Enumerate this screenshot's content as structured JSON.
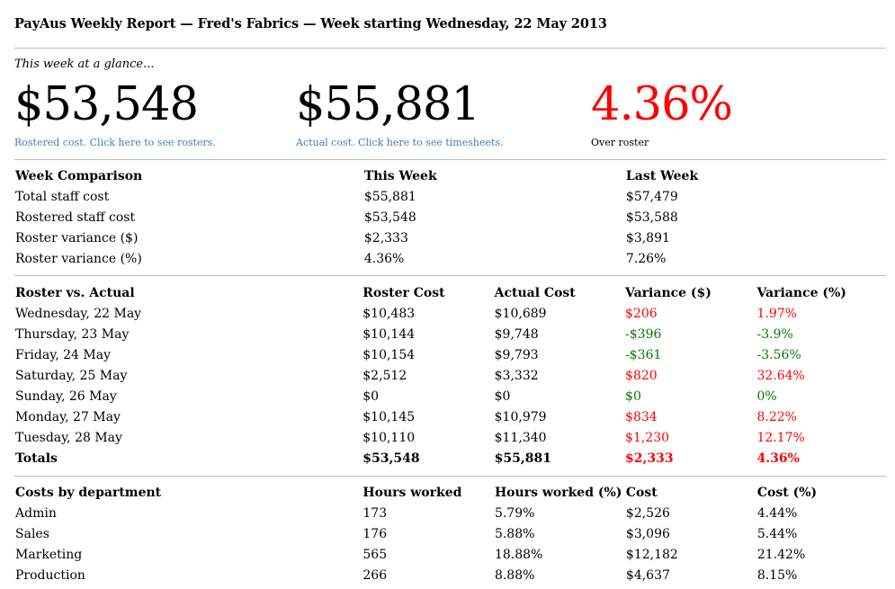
{
  "report": {
    "title": "PayAus Weekly Report — Fred's Fabrics — Week starting Wednesday, 22 May 2013"
  },
  "glance": {
    "label": "This week at a glance...",
    "rostered_value": "$53,548",
    "rostered_link": "Rostered cost. Click here to see rosters.",
    "actual_value": "$55,881",
    "actual_link": "Actual cost. Click here to see timesheets.",
    "variance_value": "4.36%",
    "variance_caption": "Over roster",
    "variance_color": "#ff0000",
    "link_color": "#3a7fc1"
  },
  "week_comparison": {
    "headers": [
      "Week Comparison",
      "This Week",
      "Last Week"
    ],
    "rows": [
      [
        "Total staff cost",
        "$55,881",
        "$57,479"
      ],
      [
        "Rostered staff cost",
        "$53,548",
        "$53,588"
      ],
      [
        "Roster variance ($)",
        "$2,333",
        "$3,891"
      ],
      [
        "Roster variance (%)",
        "4.36%",
        "7.26%"
      ]
    ]
  },
  "roster_vs_actual": {
    "headers": [
      "Roster vs. Actual",
      "Roster Cost",
      "Actual Cost",
      "Variance ($)",
      "Variance (%)"
    ],
    "rows": [
      [
        "Wednesday, 22 May",
        "$10,483",
        "$10,689",
        "$206",
        "1.97%"
      ],
      [
        "Thursday, 23 May",
        "$10,144",
        "$9,748",
        "-$396",
        "-3.9%"
      ],
      [
        "Friday, 24 May",
        "$10,154",
        "$9,793",
        "-$361",
        "-3.56%"
      ],
      [
        "Saturday, 25 May",
        "$2,512",
        "$3,332",
        "$820",
        "32.64%"
      ],
      [
        "Sunday, 26 May",
        "$0",
        "$0",
        "$0",
        "0%"
      ],
      [
        "Monday, 27 May",
        "$10,145",
        "$10,979",
        "$834",
        "8.22%"
      ],
      [
        "Tuesday, 28 May",
        "$10,110",
        "$11,340",
        "$1,230",
        "12.17%"
      ]
    ],
    "variance_status": [
      "over",
      "under",
      "under",
      "over",
      "under",
      "over",
      "over"
    ],
    "totals": [
      "Totals",
      "$53,548",
      "$55,881",
      "$2,333",
      "4.36%"
    ],
    "over_color": "#ff0000",
    "under_color": "#007a00"
  },
  "departments": {
    "headers": [
      "Costs by department",
      "Hours worked",
      "Hours worked (%)",
      "Cost",
      "Cost (%)"
    ],
    "rows": [
      [
        "Admin",
        "173",
        "5.79%",
        "$2,526",
        "4.44%"
      ],
      [
        "Sales",
        "176",
        "5.88%",
        "$3,096",
        "5.44%"
      ],
      [
        "Marketing",
        "565",
        "18.88%",
        "$12,182",
        "21.42%"
      ],
      [
        "Production",
        "266",
        "8.88%",
        "$4,637",
        "8.15%"
      ]
    ]
  }
}
